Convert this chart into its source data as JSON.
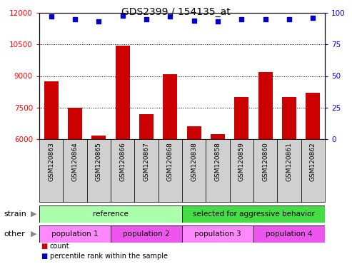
{
  "title": "GDS2399 / 154135_at",
  "samples": [
    "GSM120863",
    "GSM120864",
    "GSM120865",
    "GSM120866",
    "GSM120867",
    "GSM120868",
    "GSM120838",
    "GSM120858",
    "GSM120859",
    "GSM120860",
    "GSM120861",
    "GSM120862"
  ],
  "counts": [
    8750,
    7490,
    6180,
    10450,
    7180,
    9100,
    6620,
    6230,
    8000,
    9200,
    8000,
    8200
  ],
  "percentile_ranks": [
    97,
    95,
    93,
    98,
    95,
    97,
    94,
    93,
    95,
    95,
    95,
    96
  ],
  "ylim_left": [
    6000,
    12000
  ],
  "ylim_right": [
    0,
    100
  ],
  "yticks_left": [
    6000,
    7500,
    9000,
    10500,
    12000
  ],
  "yticks_right": [
    0,
    25,
    50,
    75,
    100
  ],
  "bar_color": "#cc0000",
  "dot_color": "#0000cc",
  "bg_color": "#ffffff",
  "plot_bg": "#ffffff",
  "xticklabel_bg": "#d0d0d0",
  "strain_row": [
    {
      "label": "reference",
      "start": 0,
      "end": 6,
      "color": "#aaffaa"
    },
    {
      "label": "selected for aggressive behavior",
      "start": 6,
      "end": 12,
      "color": "#44dd44"
    }
  ],
  "other_row": [
    {
      "label": "population 1",
      "start": 0,
      "end": 3,
      "color": "#ff88ff"
    },
    {
      "label": "population 2",
      "start": 3,
      "end": 6,
      "color": "#ee55ee"
    },
    {
      "label": "population 3",
      "start": 6,
      "end": 9,
      "color": "#ff88ff"
    },
    {
      "label": "population 4",
      "start": 9,
      "end": 12,
      "color": "#ee55ee"
    }
  ],
  "legend_items": [
    {
      "label": "count",
      "color": "#cc0000"
    },
    {
      "label": "percentile rank within the sample",
      "color": "#0000cc"
    }
  ],
  "title_size": 10
}
